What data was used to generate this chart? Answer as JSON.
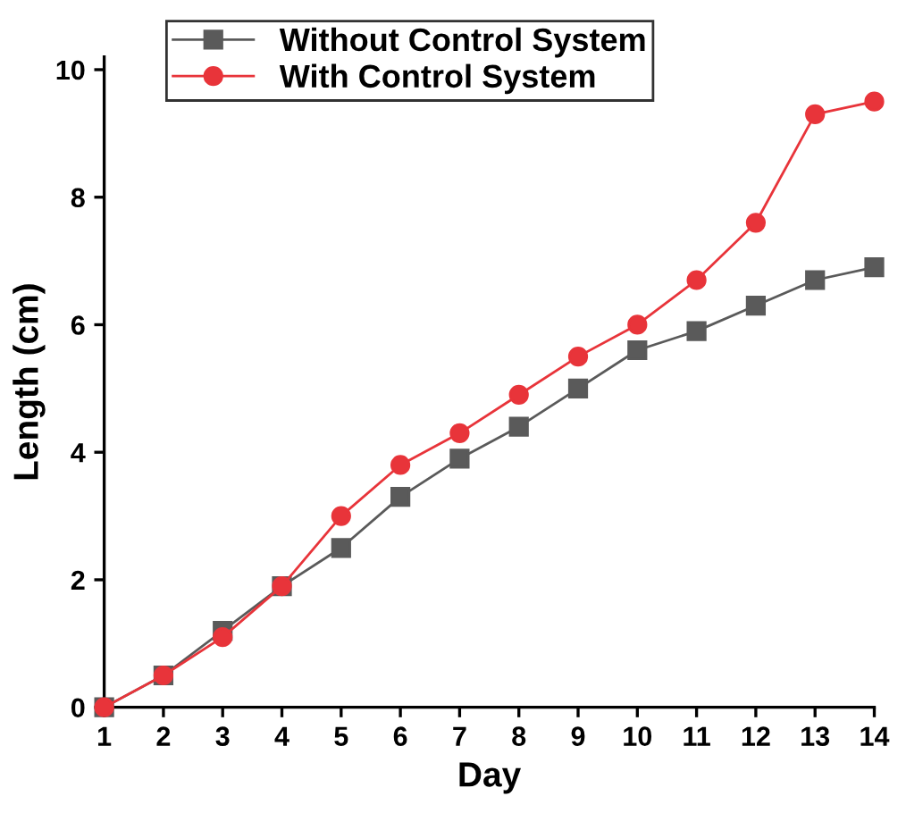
{
  "chart_data": {
    "type": "line",
    "xlabel": "Day",
    "ylabel": "Length (cm)",
    "x": [
      1,
      2,
      3,
      4,
      5,
      6,
      7,
      8,
      9,
      10,
      11,
      12,
      13,
      14
    ],
    "series": [
      {
        "name": "Without Control System",
        "color": "#5a5a5a",
        "marker": "square",
        "values": [
          0,
          0.5,
          1.2,
          1.9,
          2.5,
          3.3,
          3.9,
          4.4,
          5.0,
          5.6,
          5.9,
          6.3,
          6.7,
          6.9
        ]
      },
      {
        "name": "With Control System",
        "color": "#e8343a",
        "marker": "circle",
        "values": [
          0,
          0.5,
          1.1,
          1.9,
          3.0,
          3.8,
          4.3,
          4.9,
          5.5,
          6.0,
          6.7,
          7.6,
          9.3,
          9.5
        ]
      }
    ],
    "xlim": [
      1,
      14
    ],
    "xticks": [
      1,
      2,
      3,
      4,
      5,
      6,
      7,
      8,
      9,
      10,
      11,
      12,
      13,
      14
    ],
    "ylim": [
      0,
      10.2
    ],
    "yticks": [
      0,
      2,
      4,
      6,
      8,
      10
    ],
    "grid": false,
    "legend": "top left",
    "line_style": "solid"
  }
}
